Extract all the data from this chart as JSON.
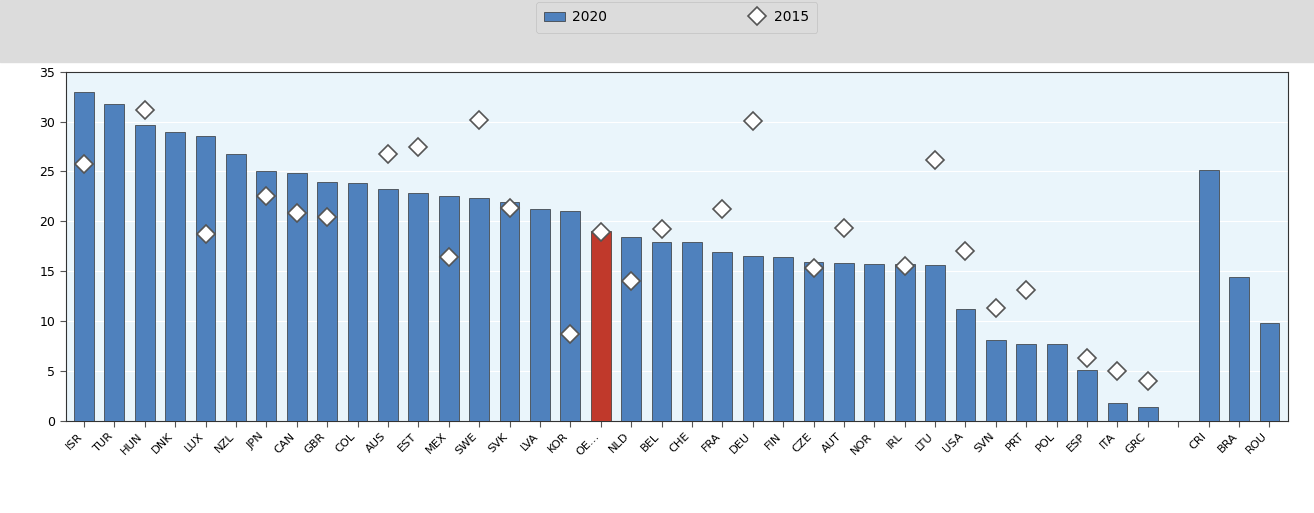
{
  "categories": [
    "ISR",
    "TUR",
    "HUN",
    "DNK",
    "LUX",
    "NZL",
    "JPN",
    "CAN",
    "GBR",
    "COL",
    "AUS",
    "EST",
    "MEX",
    "SWE",
    "SVK",
    "LVA",
    "KOR",
    "OE…",
    "NLD",
    "BEL",
    "CHE",
    "FRA",
    "DEU",
    "FIN",
    "CZE",
    "AUT",
    "NOR",
    "IRL",
    "LTU",
    "USA",
    "SVN",
    "PRT",
    "POL",
    "ESP",
    "ITA",
    "GRC",
    "",
    "CRI",
    "BRA",
    "ROU"
  ],
  "bar_2020": [
    33,
    31.8,
    29.7,
    29.0,
    28.6,
    26.8,
    25.0,
    24.8,
    23.9,
    23.8,
    23.2,
    22.8,
    22.5,
    22.3,
    21.9,
    21.2,
    21.0,
    19.0,
    18.4,
    17.9,
    17.9,
    16.9,
    16.5,
    16.4,
    15.9,
    15.8,
    15.7,
    15.7,
    15.6,
    11.2,
    8.1,
    7.7,
    7.7,
    5.1,
    1.8,
    1.4,
    null,
    25.1,
    14.4,
    9.8
  ],
  "diamond_2015": [
    25.8,
    null,
    31.2,
    null,
    18.7,
    null,
    22.5,
    20.8,
    20.4,
    null,
    26.8,
    27.5,
    16.4,
    30.2,
    21.3,
    null,
    8.7,
    18.9,
    14.0,
    19.2,
    null,
    21.2,
    30.1,
    null,
    15.3,
    19.3,
    null,
    15.5,
    26.2,
    17.0,
    11.3,
    13.1,
    null,
    6.3,
    5.0,
    4.0,
    null,
    null,
    null,
    null
  ],
  "bar_colors": [
    "#4f81bd",
    "#4f81bd",
    "#4f81bd",
    "#4f81bd",
    "#4f81bd",
    "#4f81bd",
    "#4f81bd",
    "#4f81bd",
    "#4f81bd",
    "#4f81bd",
    "#4f81bd",
    "#4f81bd",
    "#4f81bd",
    "#4f81bd",
    "#4f81bd",
    "#4f81bd",
    "#4f81bd",
    "#c0392b",
    "#4f81bd",
    "#4f81bd",
    "#4f81bd",
    "#4f81bd",
    "#4f81bd",
    "#4f81bd",
    "#4f81bd",
    "#4f81bd",
    "#4f81bd",
    "#4f81bd",
    "#4f81bd",
    "#4f81bd",
    "#4f81bd",
    "#4f81bd",
    "#4f81bd",
    "#4f81bd",
    "#4f81bd",
    "#4f81bd",
    "#ffffff",
    "#4f81bd",
    "#4f81bd",
    "#4f81bd"
  ],
  "ylim": [
    0,
    35
  ],
  "yticks": [
    0,
    5,
    10,
    15,
    20,
    25,
    30,
    35
  ],
  "legend_2020_label": "2020",
  "legend_2015_label": "2015",
  "plot_bg_color": "#eaf5fb",
  "fig_bg_color": "#ffffff",
  "legend_bg": "#dcdcdc",
  "bar_color_default": "#4f81bd",
  "bar_color_highlight": "#c0392b",
  "grid_color": "#ffffff",
  "spine_color": "#333333",
  "diamond_face": "#ffffff",
  "diamond_edge": "#555555"
}
